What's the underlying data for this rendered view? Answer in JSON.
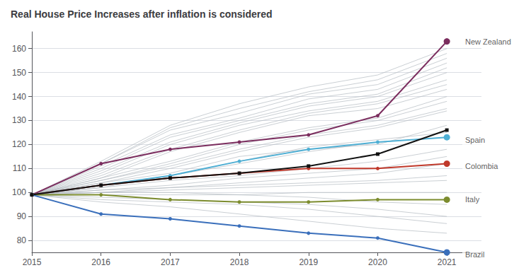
{
  "chart_data": {
    "type": "line",
    "title": "Real House Price Increases after inflation is considered",
    "x": [
      2015,
      2016,
      2017,
      2018,
      2019,
      2020,
      2021
    ],
    "xlim": [
      2015,
      2021.5
    ],
    "xticks": [
      2015,
      2016,
      2017,
      2018,
      2019,
      2020,
      2021
    ],
    "ylim": [
      75,
      167
    ],
    "yticks": [
      80,
      90,
      100,
      110,
      120,
      130,
      140,
      150,
      160
    ],
    "grid": true,
    "series": [
      {
        "color": "#b0b8be",
        "values": [
          99,
          103,
          107,
          113,
          119,
          122,
          125
        ]
      },
      {
        "color": "#b0b8be",
        "values": [
          99,
          104,
          108,
          115,
          118,
          120,
          128
        ]
      },
      {
        "color": "#b0b8be",
        "values": [
          99,
          102,
          107,
          112,
          117,
          121,
          123
        ]
      },
      {
        "color": "#b0b8be",
        "values": [
          99,
          104,
          110,
          117,
          123,
          127,
          134
        ]
      },
      {
        "color": "#b0b8be",
        "values": [
          99,
          105,
          111,
          118,
          124,
          128,
          135
        ]
      },
      {
        "color": "#b0b8be",
        "values": [
          99,
          105,
          112,
          120,
          126,
          130,
          138
        ]
      },
      {
        "color": "#b0b8be",
        "values": [
          99,
          106,
          113,
          121,
          127,
          131,
          140
        ]
      },
      {
        "color": "#b0b8be",
        "values": [
          99,
          106,
          117,
          125,
          132,
          135,
          143
        ]
      },
      {
        "color": "#b0b8be",
        "values": [
          99,
          107,
          118,
          126,
          133,
          137,
          145
        ]
      },
      {
        "color": "#b0b8be",
        "values": [
          99,
          108,
          120,
          128,
          134,
          138,
          147
        ]
      },
      {
        "color": "#b0b8be",
        "values": [
          99,
          109,
          121,
          129,
          136,
          140,
          150
        ]
      },
      {
        "color": "#b0b8be",
        "values": [
          99,
          110,
          123,
          130,
          137,
          141,
          152
        ]
      },
      {
        "color": "#b0b8be",
        "values": [
          99,
          111,
          124,
          131,
          139,
          143,
          154
        ]
      },
      {
        "color": "#b0b8be",
        "values": [
          99,
          112,
          126,
          133,
          141,
          145,
          156
        ]
      },
      {
        "color": "#b0b8be",
        "values": [
          99,
          112,
          127,
          135,
          142,
          147,
          158
        ]
      },
      {
        "color": "#b0b8be",
        "values": [
          99,
          113,
          128,
          137,
          144,
          149,
          160
        ]
      },
      {
        "color": "#b0b8be",
        "values": [
          99,
          99,
          99,
          99,
          100,
          100,
          100
        ]
      },
      {
        "color": "#b0b8be",
        "values": [
          99,
          100,
          101,
          102,
          103,
          104,
          105
        ]
      },
      {
        "color": "#b0b8be",
        "values": [
          99,
          101,
          102,
          103,
          104,
          105,
          107
        ]
      },
      {
        "color": "#b0b8be",
        "values": [
          99,
          100,
          102,
          104,
          106,
          108,
          112
        ]
      },
      {
        "color": "#b0b8be",
        "values": [
          99,
          101,
          103,
          106,
          108,
          110,
          115
        ]
      },
      {
        "color": "#b0b8be",
        "values": [
          99,
          102,
          105,
          107,
          110,
          113,
          118
        ]
      },
      {
        "color": "#b0b8be",
        "values": [
          99,
          100,
          100,
          99,
          98,
          96,
          95
        ]
      },
      {
        "color": "#b0b8be",
        "values": [
          99,
          98,
          97,
          96,
          95,
          93,
          90
        ]
      },
      {
        "color": "#b0b8be",
        "values": [
          99,
          97,
          96,
          95,
          93,
          90,
          87
        ]
      },
      {
        "color": "#b0b8be",
        "values": [
          99,
          96,
          94,
          91,
          88,
          85,
          83
        ]
      },
      {
        "name": "New Zealand",
        "color": "#7b2d5e",
        "marker": "circle",
        "values": [
          99,
          112,
          118,
          121,
          124,
          132,
          163
        ]
      },
      {
        "name": "Spain",
        "color": "#4fafd4",
        "marker": "circle",
        "values": [
          99,
          103,
          107,
          113,
          118,
          121,
          123
        ]
      },
      {
        "name": "Colombia",
        "color": "#c0392b",
        "marker": "circle",
        "values": [
          99,
          103,
          106,
          108,
          110,
          110,
          112
        ]
      },
      {
        "name": "Italy",
        "color": "#7c8c2e",
        "marker": "circle",
        "values": [
          99,
          99,
          97,
          96,
          96,
          97,
          97
        ]
      },
      {
        "name": "Brazil",
        "color": "#3a6fbb",
        "marker": "circle",
        "values": [
          99,
          91,
          89,
          86,
          83,
          81,
          75
        ]
      },
      {
        "color": "#111111",
        "marker": "square",
        "values": [
          99,
          103,
          106,
          108,
          111,
          116,
          126
        ]
      }
    ],
    "annotations": [
      {
        "text": "New Zealand",
        "x": 2021.08,
        "y": 163
      },
      {
        "text": "Spain",
        "x": 2021.08,
        "y": 122
      },
      {
        "text": "Colombia",
        "x": 2021.08,
        "y": 111
      },
      {
        "text": "Italy",
        "x": 2021.08,
        "y": 97
      },
      {
        "text": "Brazil",
        "x": 2021.08,
        "y": 74
      }
    ]
  }
}
